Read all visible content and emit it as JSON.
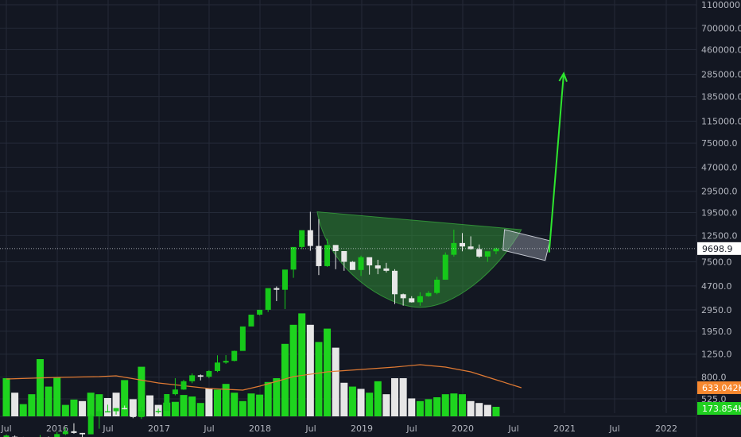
{
  "theme": {
    "background": "#131722",
    "grid": "#242a38",
    "axis_text": "#b2b5be",
    "up_color": "#16c81a",
    "down_color": "#e8e8e8",
    "vol_up": "#1ed41e",
    "vol_down": "#e6e6e6",
    "ma_color": "#e07a33",
    "arrow_color": "#2ee62e",
    "cup_fill": "#2f8a35",
    "tag_price_bg": "#ffffff",
    "tag_price_fg": "#131722",
    "tag_ma_bg": "#f7882f",
    "tag_vol_bg": "#20d020"
  },
  "chart_data": {
    "type": "candlestick",
    "y_scale": "log",
    "y_ticks": [
      "1100000.0",
      "700000.0",
      "460000.0",
      "285000.0",
      "185000.0",
      "115000.0",
      "75000.0",
      "47000.0",
      "29500.0",
      "19500.0",
      "12500.0",
      "7500.0",
      "4700.0",
      "2950.0",
      "1950.0",
      "1250.0",
      "800.0",
      "525.0"
    ],
    "x_ticks": [
      "Jul",
      "2016",
      "Jul",
      "2017",
      "Jul",
      "2018",
      "Jul",
      "2019",
      "Jul",
      "2020",
      "Jul",
      "2021",
      "Jul",
      "2022"
    ],
    "candles": [
      [
        236,
        231,
        264,
        258
      ],
      [
        252,
        236,
        258,
        247
      ],
      [
        247,
        219,
        251,
        230
      ],
      [
        230,
        213,
        241,
        230
      ],
      [
        230,
        223,
        260,
        246
      ],
      [
        246,
        224,
        253,
        230
      ],
      [
        230,
        224,
        277,
        265
      ],
      [
        265,
        260,
        300,
        280
      ],
      [
        280,
        267,
        327,
        271
      ],
      [
        271,
        238,
        271,
        264
      ],
      [
        264,
        264,
        391,
        378
      ],
      [
        378,
        294,
        425,
        413
      ],
      [
        413,
        406,
        469,
        413
      ],
      [
        413,
        387,
        439,
        439
      ],
      [
        439,
        428,
        461,
        433
      ],
      [
        433,
        361,
        464,
        369
      ],
      [
        369,
        356,
        448,
        414
      ],
      [
        414,
        407,
        424,
        413
      ],
      [
        413,
        395,
        434,
        416
      ],
      [
        416,
        418,
        575,
        576
      ],
      [
        575,
        562,
        784,
        629
      ],
      [
        629,
        625,
        760,
        739
      ],
      [
        739,
        711,
        860,
        829
      ],
      [
        829,
        751,
        843,
        807
      ],
      [
        807,
        783,
        917,
        901
      ],
      [
        901,
        884,
        1222,
        1062
      ],
      [
        1062,
        1037,
        1226,
        1097
      ],
      [
        1097,
        1086,
        1339,
        1331
      ],
      [
        1331,
        1335,
        2069,
        2140
      ],
      [
        2140,
        2420,
        2670,
        2690
      ],
      [
        2690,
        2652,
        2956,
        2956
      ],
      [
        2956,
        2837,
        4300,
        4500
      ],
      [
        4500,
        3500,
        4650,
        4360
      ],
      [
        4360,
        3000,
        5850,
        6450
      ],
      [
        6450,
        5500,
        7700,
        10000
      ],
      [
        10000,
        9600,
        12600,
        13850
      ],
      [
        13850,
        9300,
        19800,
        10200
      ],
      [
        10200,
        5800,
        17200,
        6900
      ],
      [
        6900,
        6800,
        11700,
        10400
      ],
      [
        10400,
        6500,
        10300,
        9240
      ],
      [
        9240,
        6300,
        8400,
        7500
      ],
      [
        7500,
        7200,
        7600,
        6400
      ],
      [
        6400,
        5700,
        8450,
        8200
      ],
      [
        8200,
        5850,
        8130,
        7000
      ],
      [
        7000,
        5900,
        7800,
        6600
      ],
      [
        6600,
        6100,
        7350,
        6300
      ],
      [
        6300,
        3300,
        6500,
        4000
      ],
      [
        4000,
        3200,
        4050,
        3700
      ],
      [
        3700,
        3400,
        3850,
        3420
      ],
      [
        3420,
        3200,
        4150,
        3850
      ],
      [
        3850,
        3800,
        4250,
        4100
      ],
      [
        4100,
        4000,
        5600,
        5300
      ],
      [
        5300,
        5300,
        9000,
        8600
      ],
      [
        8600,
        8300,
        14000,
        10800
      ],
      [
        10800,
        9200,
        13100,
        10100
      ],
      [
        10100,
        9500,
        12300,
        9600
      ],
      [
        9600,
        8100,
        10500,
        8300
      ],
      [
        8300,
        7500,
        9100,
        9200
      ],
      [
        9200,
        8700,
        9900,
        9699
      ]
    ],
    "volume_note": "monthly volume bars, log-scaled axis shares right labels 800.0 / 525.0",
    "volume": [
      [
        1,
        "u"
      ],
      [
        0.62,
        "d"
      ],
      [
        0.32,
        "u"
      ],
      [
        0.58,
        "u"
      ],
      [
        1.5,
        "u"
      ],
      [
        0.78,
        "u"
      ],
      [
        1.02,
        "u"
      ],
      [
        0.3,
        "u"
      ],
      [
        0.44,
        "u"
      ],
      [
        0.4,
        "d"
      ],
      [
        0.62,
        "u"
      ],
      [
        0.58,
        "u"
      ],
      [
        0.48,
        "d"
      ],
      [
        0.62,
        "d"
      ],
      [
        0.95,
        "u"
      ],
      [
        0.45,
        "d"
      ],
      [
        1.3,
        "u"
      ],
      [
        0.55,
        "d"
      ],
      [
        0.3,
        "d"
      ],
      [
        0.36,
        "u"
      ],
      [
        0.38,
        "u"
      ],
      [
        0.56,
        "u"
      ],
      [
        0.52,
        "u"
      ],
      [
        0.35,
        "u"
      ],
      [
        0.74,
        "d"
      ],
      [
        0.7,
        "u"
      ],
      [
        0.85,
        "u"
      ],
      [
        0.62,
        "u"
      ],
      [
        0.4,
        "u"
      ],
      [
        0.6,
        "u"
      ],
      [
        0.57,
        "u"
      ],
      [
        0.9,
        "u"
      ],
      [
        1.0,
        "u"
      ],
      [
        1.9,
        "u"
      ],
      [
        2.4,
        "u"
      ],
      [
        2.7,
        "u"
      ],
      [
        2.4,
        "d"
      ],
      [
        1.95,
        "u"
      ],
      [
        2.3,
        "u"
      ],
      [
        1.8,
        "d"
      ],
      [
        0.88,
        "d"
      ],
      [
        0.78,
        "u"
      ],
      [
        0.72,
        "d"
      ],
      [
        0.62,
        "u"
      ],
      [
        0.92,
        "u"
      ],
      [
        0.58,
        "d"
      ],
      [
        1.0,
        "d"
      ],
      [
        1.0,
        "d"
      ],
      [
        0.47,
        "d"
      ],
      [
        0.4,
        "u"
      ],
      [
        0.45,
        "u"
      ],
      [
        0.5,
        "u"
      ],
      [
        0.58,
        "u"
      ],
      [
        0.6,
        "u"
      ],
      [
        0.58,
        "u"
      ],
      [
        0.4,
        "d"
      ],
      [
        0.35,
        "d"
      ],
      [
        0.3,
        "d"
      ],
      [
        0.25,
        "u"
      ]
    ],
    "price_tag": "9698.9",
    "ma_tag": "633.042K",
    "vol_tag": "173.854K",
    "ma_ticks": [
      "800.0",
      "525.0"
    ]
  }
}
